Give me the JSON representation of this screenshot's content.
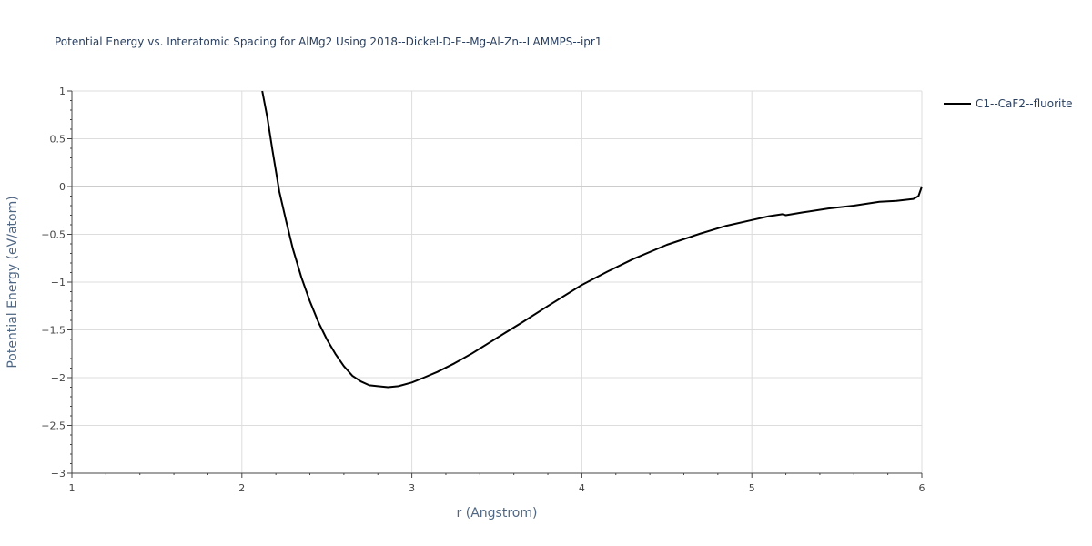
{
  "chart_data": {
    "type": "line",
    "title": "Potential Energy vs. Interatomic Spacing for AlMg2 Using 2018--Dickel-D-E--Mg-Al-Zn--LAMMPS--ipr1",
    "xlabel": "r (Angstrom)",
    "ylabel": "Potential Energy (eV/atom)",
    "xlim": [
      1,
      6
    ],
    "ylim": [
      -3,
      1
    ],
    "x_ticks": [
      1,
      2,
      3,
      4,
      5,
      6
    ],
    "x_tick_labels": [
      "1",
      "2",
      "3",
      "4",
      "5",
      "6"
    ],
    "y_ticks": [
      1,
      0.5,
      0,
      -0.5,
      -1,
      -1.5,
      -2,
      -2.5,
      -3
    ],
    "y_tick_labels": [
      "1",
      "0.5",
      "0",
      "−0.5",
      "−1",
      "−1.5",
      "−2",
      "−2.5",
      "−3"
    ],
    "grid": true,
    "legend_position": "top-right",
    "colors": {
      "line": "#000000",
      "grid": "#dddddd",
      "zeroline": "#cccccc",
      "axis": "#444444"
    },
    "series": [
      {
        "name": "C1--CaF2--fluorite",
        "x": [
          2.12,
          2.15,
          2.18,
          2.22,
          2.26,
          2.3,
          2.35,
          2.4,
          2.45,
          2.5,
          2.55,
          2.6,
          2.65,
          2.7,
          2.75,
          2.8,
          2.86,
          2.92,
          3.0,
          3.07,
          3.15,
          3.25,
          3.35,
          3.45,
          3.55,
          3.65,
          3.8,
          4.0,
          4.15,
          4.3,
          4.5,
          4.7,
          4.85,
          5.0,
          5.1,
          5.18,
          5.2,
          5.3,
          5.45,
          5.6,
          5.75,
          5.85,
          5.95,
          5.98,
          6.0
        ],
        "y": [
          1.0,
          0.72,
          0.38,
          -0.05,
          -0.36,
          -0.65,
          -0.95,
          -1.2,
          -1.42,
          -1.6,
          -1.75,
          -1.88,
          -1.98,
          -2.04,
          -2.08,
          -2.09,
          -2.1,
          -2.09,
          -2.05,
          -2.0,
          -1.94,
          -1.85,
          -1.75,
          -1.64,
          -1.53,
          -1.42,
          -1.25,
          -1.03,
          -0.89,
          -0.76,
          -0.61,
          -0.49,
          -0.41,
          -0.35,
          -0.31,
          -0.29,
          -0.3,
          -0.27,
          -0.23,
          -0.2,
          -0.16,
          -0.15,
          -0.13,
          -0.1,
          0.0
        ]
      }
    ]
  }
}
